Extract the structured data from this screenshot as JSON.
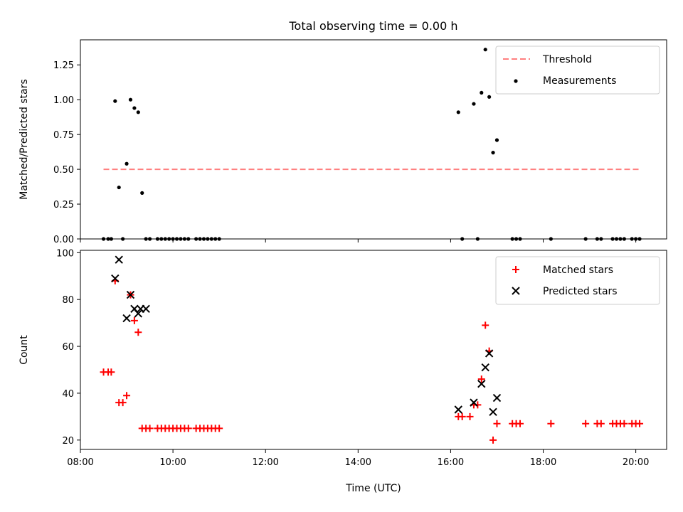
{
  "chart_data": [
    {
      "type": "scatter",
      "title": "Total observing time = 0.00 h",
      "xlabel": "",
      "ylabel": "Matched/Predicted stars",
      "xlim": [
        "08:00",
        "20:40"
      ],
      "ylim": [
        0,
        1.43
      ],
      "x_ticks": [
        "08:00",
        "10:00",
        "12:00",
        "14:00",
        "16:00",
        "18:00",
        "20:00"
      ],
      "y_ticks": [
        "0.00",
        "0.25",
        "0.50",
        "0.75",
        "1.00",
        "1.25"
      ],
      "legend_position": "upper right",
      "grid": false,
      "series": [
        {
          "name": "Threshold",
          "kind": "line",
          "style": "dashed",
          "color": "#ff7f7f",
          "points": [
            [
              "08:30",
              0.5
            ],
            [
              "20:05",
              0.5
            ]
          ]
        },
        {
          "name": "Measurements",
          "kind": "scatter",
          "marker": "dot",
          "color": "#000000",
          "points": [
            [
              "08:30",
              0.0
            ],
            [
              "08:36",
              0.0
            ],
            [
              "08:40",
              0.0
            ],
            [
              "08:45",
              0.99
            ],
            [
              "08:50",
              0.37
            ],
            [
              "08:55",
              0.0
            ],
            [
              "09:00",
              0.54
            ],
            [
              "09:05",
              1.0
            ],
            [
              "09:10",
              0.94
            ],
            [
              "09:15",
              0.91
            ],
            [
              "09:20",
              0.33
            ],
            [
              "09:25",
              0.0
            ],
            [
              "09:30",
              0.0
            ],
            [
              "09:40",
              0.0
            ],
            [
              "09:45",
              0.0
            ],
            [
              "09:50",
              0.0
            ],
            [
              "09:55",
              0.0
            ],
            [
              "10:00",
              0.0
            ],
            [
              "10:05",
              0.0
            ],
            [
              "10:10",
              0.0
            ],
            [
              "10:15",
              0.0
            ],
            [
              "10:20",
              0.0
            ],
            [
              "10:30",
              0.0
            ],
            [
              "10:35",
              0.0
            ],
            [
              "10:40",
              0.0
            ],
            [
              "10:45",
              0.0
            ],
            [
              "10:50",
              0.0
            ],
            [
              "10:55",
              0.0
            ],
            [
              "11:00",
              0.0
            ],
            [
              "16:10",
              0.91
            ],
            [
              "16:15",
              0.0
            ],
            [
              "16:30",
              0.97
            ],
            [
              "16:35",
              0.0
            ],
            [
              "16:40",
              1.05
            ],
            [
              "16:45",
              1.36
            ],
            [
              "16:50",
              1.02
            ],
            [
              "16:55",
              0.62
            ],
            [
              "17:00",
              0.71
            ],
            [
              "17:20",
              0.0
            ],
            [
              "17:25",
              0.0
            ],
            [
              "17:30",
              0.0
            ],
            [
              "18:10",
              0.0
            ],
            [
              "18:55",
              0.0
            ],
            [
              "19:10",
              0.0
            ],
            [
              "19:15",
              0.0
            ],
            [
              "19:30",
              0.0
            ],
            [
              "19:35",
              0.0
            ],
            [
              "19:40",
              0.0
            ],
            [
              "19:45",
              0.0
            ],
            [
              "19:55",
              0.0
            ],
            [
              "20:00",
              0.0
            ],
            [
              "20:05",
              0.0
            ]
          ]
        }
      ]
    },
    {
      "type": "scatter",
      "title": "",
      "xlabel": "Time (UTC)",
      "ylabel": "Count",
      "xlim": [
        "08:00",
        "20:40"
      ],
      "ylim": [
        16,
        101
      ],
      "x_ticks": [
        "08:00",
        "10:00",
        "12:00",
        "14:00",
        "16:00",
        "18:00",
        "20:00"
      ],
      "y_ticks": [
        "20",
        "40",
        "60",
        "80",
        "100"
      ],
      "legend_position": "upper right",
      "grid": false,
      "series": [
        {
          "name": "Matched stars",
          "kind": "scatter",
          "marker": "plus",
          "color": "#ff0000",
          "points": [
            [
              "08:30",
              49
            ],
            [
              "08:36",
              49
            ],
            [
              "08:40",
              49
            ],
            [
              "08:45",
              88
            ],
            [
              "08:50",
              36
            ],
            [
              "08:55",
              36
            ],
            [
              "09:00",
              39
            ],
            [
              "09:05",
              82
            ],
            [
              "09:10",
              71
            ],
            [
              "09:15",
              66
            ],
            [
              "09:20",
              25
            ],
            [
              "09:25",
              25
            ],
            [
              "09:30",
              25
            ],
            [
              "09:40",
              25
            ],
            [
              "09:45",
              25
            ],
            [
              "09:50",
              25
            ],
            [
              "09:55",
              25
            ],
            [
              "10:00",
              25
            ],
            [
              "10:05",
              25
            ],
            [
              "10:10",
              25
            ],
            [
              "10:15",
              25
            ],
            [
              "10:20",
              25
            ],
            [
              "10:30",
              25
            ],
            [
              "10:35",
              25
            ],
            [
              "10:40",
              25
            ],
            [
              "10:45",
              25
            ],
            [
              "10:50",
              25
            ],
            [
              "10:55",
              25
            ],
            [
              "11:00",
              25
            ],
            [
              "16:10",
              30
            ],
            [
              "16:15",
              30
            ],
            [
              "16:25",
              30
            ],
            [
              "16:30",
              35
            ],
            [
              "16:35",
              35
            ],
            [
              "16:40",
              46
            ],
            [
              "16:45",
              69
            ],
            [
              "16:50",
              58
            ],
            [
              "16:55",
              20
            ],
            [
              "17:00",
              27
            ],
            [
              "17:20",
              27
            ],
            [
              "17:25",
              27
            ],
            [
              "17:30",
              27
            ],
            [
              "18:10",
              27
            ],
            [
              "18:55",
              27
            ],
            [
              "19:10",
              27
            ],
            [
              "19:15",
              27
            ],
            [
              "19:30",
              27
            ],
            [
              "19:35",
              27
            ],
            [
              "19:40",
              27
            ],
            [
              "19:45",
              27
            ],
            [
              "19:55",
              27
            ],
            [
              "20:00",
              27
            ],
            [
              "20:05",
              27
            ]
          ]
        },
        {
          "name": "Predicted stars",
          "kind": "scatter",
          "marker": "x",
          "color": "#000000",
          "points": [
            [
              "08:45",
              89
            ],
            [
              "08:50",
              97
            ],
            [
              "09:00",
              72
            ],
            [
              "09:05",
              82
            ],
            [
              "09:10",
              76
            ],
            [
              "09:15",
              74
            ],
            [
              "09:18",
              76
            ],
            [
              "09:25",
              76
            ],
            [
              "16:10",
              33
            ],
            [
              "16:30",
              36
            ],
            [
              "16:40",
              44
            ],
            [
              "16:45",
              51
            ],
            [
              "16:50",
              57
            ],
            [
              "16:55",
              32
            ],
            [
              "17:00",
              38
            ]
          ]
        }
      ]
    }
  ]
}
